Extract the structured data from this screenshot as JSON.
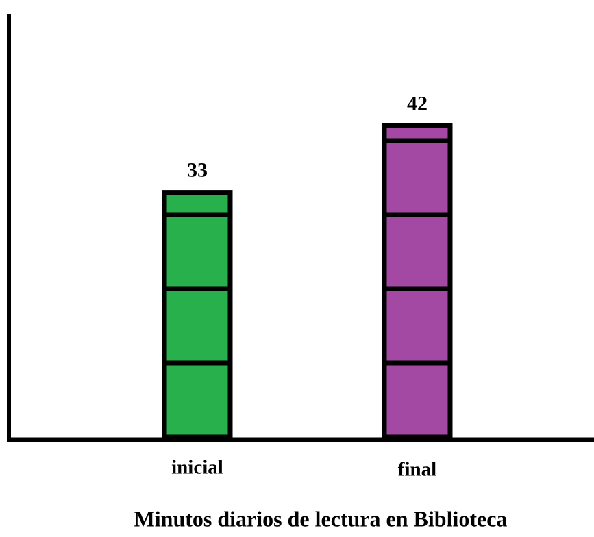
{
  "chart_data": {
    "type": "bar",
    "title": "Minutos diarios de lectura en Biblioteca",
    "categories": [
      "inicial",
      "final"
    ],
    "values": [
      33,
      42
    ],
    "colors": [
      "#27b04b",
      "#a349a4"
    ]
  }
}
